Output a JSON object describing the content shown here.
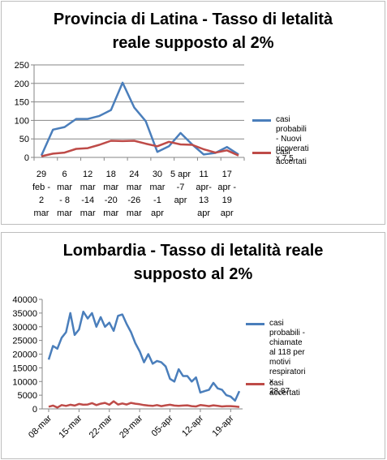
{
  "colors": {
    "series1": "#4a7ebb",
    "series2": "#be4b48",
    "grid": "#868686",
    "axis": "#868686"
  },
  "chart_data": [
    {
      "type": "line",
      "title_lines": [
        "Provincia di Latina - Tasso di letalità",
        "reale supposto al 2%"
      ],
      "x_labels": [
        [
          "29",
          "feb -",
          "2",
          "mar"
        ],
        [
          "6",
          "mar",
          "- 8",
          "mar"
        ],
        [
          "12",
          "mar",
          "-14",
          "mar"
        ],
        [
          "18",
          "mar",
          "-20",
          "mar"
        ],
        [
          "24",
          "mar",
          "-26",
          "mar"
        ],
        [
          "30",
          "mar",
          "-1",
          "apr"
        ],
        [
          "5 apr",
          "-7",
          "apr"
        ],
        [
          "11",
          "apr-",
          "13",
          "apr"
        ],
        [
          "17",
          "apr -",
          "19",
          "apr"
        ]
      ],
      "yticks": [
        "0",
        "50",
        "100",
        "150",
        "200",
        "250"
      ],
      "ylim": [
        0,
        250
      ],
      "grid": true,
      "legend_position": "right",
      "series": [
        {
          "name": "casi probabili - Nuovi ricoverati x 7,5",
          "name_lines": [
            "casi probabili - Nuovi",
            "ricoverati x 7,5"
          ],
          "values": [
            5,
            75,
            82,
            104,
            104,
            112,
            128,
            202,
            135,
            98,
            15,
            30,
            66,
            35,
            8,
            12,
            28,
            8
          ]
        },
        {
          "name": "casi accertati",
          "name_lines": [
            "casi accertati"
          ],
          "values": [
            3,
            10,
            13,
            23,
            25,
            34,
            45,
            44,
            45,
            37,
            30,
            42,
            35,
            34,
            22,
            13,
            19,
            5
          ]
        }
      ]
    },
    {
      "type": "line",
      "title_lines": [
        "Lombardia - Tasso di letalità reale",
        "supposto al 2%"
      ],
      "x_labels": [
        "08-mar",
        "15-mar",
        "22-mar",
        "29-mar",
        "05-apr",
        "12-apr",
        "19-apr"
      ],
      "yticks": [
        "0",
        "5000",
        "10000",
        "15000",
        "20000",
        "25000",
        "30000",
        "35000",
        "40000"
      ],
      "ylim": [
        0,
        40000
      ],
      "grid": false,
      "legend_position": "right",
      "series": [
        {
          "name": "casi probabili - chiamate al 118 per motivi respiratori x 28,87",
          "name_lines": [
            "casi probabili -",
            "chiamate al 118 per",
            "motivi respiratori x",
            "28,87"
          ],
          "values": [
            18000,
            23000,
            22000,
            26000,
            28000,
            35000,
            27000,
            29000,
            35500,
            33000,
            35000,
            30000,
            33500,
            30000,
            31500,
            28500,
            34000,
            34500,
            31000,
            28000,
            24000,
            21000,
            17000,
            20000,
            16500,
            17500,
            17000,
            15500,
            11000,
            10000,
            14500,
            12000,
            12000,
            10000,
            11500,
            6000,
            6500,
            7000,
            9500,
            7500,
            7000,
            5000,
            4500,
            3000,
            6500
          ]
        },
        {
          "name": "casi accertati",
          "name_lines": [
            "casi accertati"
          ],
          "values": [
            800,
            1200,
            500,
            1400,
            1100,
            1500,
            1200,
            1800,
            1500,
            1600,
            2100,
            1400,
            1900,
            2200,
            1500,
            2800,
            1600,
            2000,
            1600,
            2200,
            1900,
            1700,
            1400,
            1200,
            1100,
            1400,
            1000,
            1300,
            1500,
            1200,
            1100,
            1200,
            1300,
            1000,
            900,
            1400,
            1200,
            1000,
            1300,
            1100,
            900,
            1000,
            1000,
            900,
            700
          ]
        }
      ]
    }
  ]
}
